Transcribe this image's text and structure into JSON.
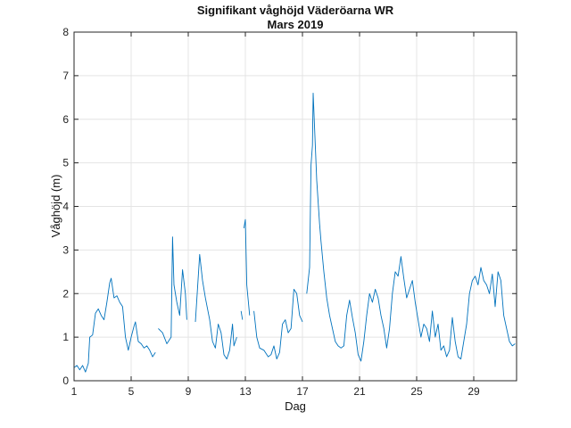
{
  "chart_data": {
    "type": "line",
    "title": "Signifikant våghöjd Väderöarna WR",
    "subtitle": "Mars 2019",
    "xlabel": "Dag",
    "ylabel": "Våghöjd (m)",
    "xlim": [
      1,
      32
    ],
    "ylim": [
      0,
      8
    ],
    "xticks": [
      1,
      5,
      9,
      13,
      17,
      21,
      25,
      29
    ],
    "yticks": [
      0,
      1,
      2,
      3,
      4,
      5,
      6,
      7,
      8
    ],
    "grid": true,
    "line_color": "#0072BD",
    "series": [
      {
        "segments": [
          [
            [
              1.0,
              0.3
            ],
            [
              1.2,
              0.35
            ],
            [
              1.4,
              0.25
            ],
            [
              1.6,
              0.35
            ],
            [
              1.8,
              0.2
            ],
            [
              2.0,
              0.4
            ],
            [
              2.1,
              1.0
            ],
            [
              2.3,
              1.05
            ],
            [
              2.5,
              1.55
            ],
            [
              2.7,
              1.65
            ],
            [
              2.9,
              1.5
            ],
            [
              3.1,
              1.4
            ],
            [
              3.3,
              1.8
            ],
            [
              3.5,
              2.25
            ],
            [
              3.6,
              2.35
            ],
            [
              3.8,
              1.9
            ],
            [
              4.0,
              1.95
            ],
            [
              4.2,
              1.8
            ],
            [
              4.4,
              1.7
            ],
            [
              4.6,
              1.0
            ],
            [
              4.8,
              0.7
            ],
            [
              5.0,
              1.0
            ],
            [
              5.2,
              1.25
            ],
            [
              5.3,
              1.35
            ],
            [
              5.5,
              0.9
            ],
            [
              5.7,
              0.85
            ],
            [
              5.9,
              0.75
            ],
            [
              6.1,
              0.8
            ],
            [
              6.3,
              0.7
            ],
            [
              6.5,
              0.55
            ],
            [
              6.7,
              0.65
            ]
          ],
          [
            [
              6.9,
              1.2
            ],
            [
              7.2,
              1.1
            ],
            [
              7.5,
              0.85
            ],
            [
              7.8,
              1.0
            ],
            [
              7.9,
              3.3
            ],
            [
              8.0,
              2.2
            ],
            [
              8.2,
              1.8
            ],
            [
              8.4,
              1.5
            ],
            [
              8.6,
              2.55
            ],
            [
              8.8,
              2.0
            ],
            [
              8.9,
              1.4
            ]
          ],
          [
            [
              9.5,
              1.35
            ],
            [
              9.8,
              2.9
            ],
            [
              10.0,
              2.3
            ],
            [
              10.2,
              1.9
            ],
            [
              10.5,
              1.4
            ],
            [
              10.7,
              0.9
            ],
            [
              10.9,
              0.75
            ],
            [
              11.1,
              1.3
            ],
            [
              11.3,
              1.1
            ],
            [
              11.5,
              0.6
            ],
            [
              11.7,
              0.5
            ],
            [
              11.9,
              0.7
            ],
            [
              12.1,
              1.3
            ],
            [
              12.2,
              0.8
            ],
            [
              12.4,
              1.0
            ]
          ],
          [
            [
              12.7,
              1.6
            ],
            [
              12.8,
              1.4
            ]
          ],
          [
            [
              12.9,
              3.5
            ],
            [
              13.0,
              3.7
            ],
            [
              13.1,
              2.2
            ],
            [
              13.3,
              1.5
            ]
          ],
          [
            [
              13.6,
              1.6
            ],
            [
              13.8,
              1.0
            ],
            [
              14.0,
              0.75
            ],
            [
              14.3,
              0.7
            ],
            [
              14.6,
              0.55
            ],
            [
              14.8,
              0.6
            ],
            [
              15.0,
              0.8
            ],
            [
              15.2,
              0.5
            ],
            [
              15.4,
              0.65
            ],
            [
              15.6,
              1.3
            ],
            [
              15.8,
              1.4
            ],
            [
              16.0,
              1.1
            ],
            [
              16.2,
              1.2
            ],
            [
              16.4,
              2.1
            ],
            [
              16.6,
              2.0
            ],
            [
              16.8,
              1.5
            ],
            [
              17.0,
              1.35
            ]
          ],
          [
            [
              17.3,
              2.0
            ],
            [
              17.5,
              2.6
            ],
            [
              17.6,
              4.95
            ],
            [
              17.7,
              5.4
            ],
            [
              17.75,
              6.6
            ],
            [
              17.8,
              6.2
            ],
            [
              17.9,
              5.4
            ],
            [
              18.0,
              4.6
            ],
            [
              18.1,
              4.1
            ],
            [
              18.2,
              3.6
            ],
            [
              18.3,
              3.2
            ],
            [
              18.5,
              2.5
            ],
            [
              18.7,
              1.9
            ],
            [
              18.9,
              1.5
            ],
            [
              19.1,
              1.2
            ],
            [
              19.3,
              0.9
            ],
            [
              19.5,
              0.8
            ],
            [
              19.7,
              0.75
            ],
            [
              19.9,
              0.8
            ],
            [
              20.1,
              1.5
            ],
            [
              20.3,
              1.85
            ],
            [
              20.5,
              1.45
            ],
            [
              20.7,
              1.1
            ],
            [
              20.9,
              0.6
            ],
            [
              21.1,
              0.45
            ],
            [
              21.3,
              0.9
            ],
            [
              21.5,
              1.5
            ],
            [
              21.7,
              2.0
            ],
            [
              21.9,
              1.8
            ],
            [
              22.1,
              2.1
            ],
            [
              22.3,
              1.9
            ],
            [
              22.5,
              1.5
            ],
            [
              22.7,
              1.2
            ],
            [
              22.9,
              0.75
            ],
            [
              23.1,
              1.2
            ],
            [
              23.3,
              2.0
            ],
            [
              23.5,
              2.5
            ],
            [
              23.7,
              2.4
            ],
            [
              23.9,
              2.85
            ],
            [
              24.1,
              2.35
            ],
            [
              24.3,
              1.9
            ],
            [
              24.5,
              2.1
            ],
            [
              24.7,
              2.3
            ],
            [
              24.9,
              1.8
            ],
            [
              25.1,
              1.4
            ],
            [
              25.3,
              1.0
            ],
            [
              25.5,
              1.3
            ],
            [
              25.7,
              1.2
            ],
            [
              25.9,
              0.9
            ],
            [
              26.1,
              1.6
            ],
            [
              26.3,
              1.0
            ],
            [
              26.5,
              1.3
            ],
            [
              26.7,
              0.7
            ],
            [
              26.9,
              0.8
            ],
            [
              27.1,
              0.55
            ],
            [
              27.3,
              0.7
            ],
            [
              27.5,
              1.45
            ],
            [
              27.7,
              0.9
            ],
            [
              27.9,
              0.55
            ],
            [
              28.1,
              0.5
            ],
            [
              28.3,
              0.9
            ],
            [
              28.5,
              1.3
            ],
            [
              28.7,
              2.0
            ],
            [
              28.9,
              2.3
            ],
            [
              29.1,
              2.4
            ],
            [
              29.3,
              2.2
            ],
            [
              29.5,
              2.6
            ],
            [
              29.7,
              2.3
            ],
            [
              29.9,
              2.2
            ],
            [
              30.1,
              2.0
            ],
            [
              30.3,
              2.45
            ],
            [
              30.5,
              1.7
            ],
            [
              30.7,
              2.5
            ],
            [
              30.9,
              2.3
            ],
            [
              31.1,
              1.5
            ],
            [
              31.3,
              1.2
            ],
            [
              31.5,
              0.9
            ],
            [
              31.7,
              0.8
            ],
            [
              31.9,
              0.85
            ]
          ]
        ]
      }
    ]
  }
}
